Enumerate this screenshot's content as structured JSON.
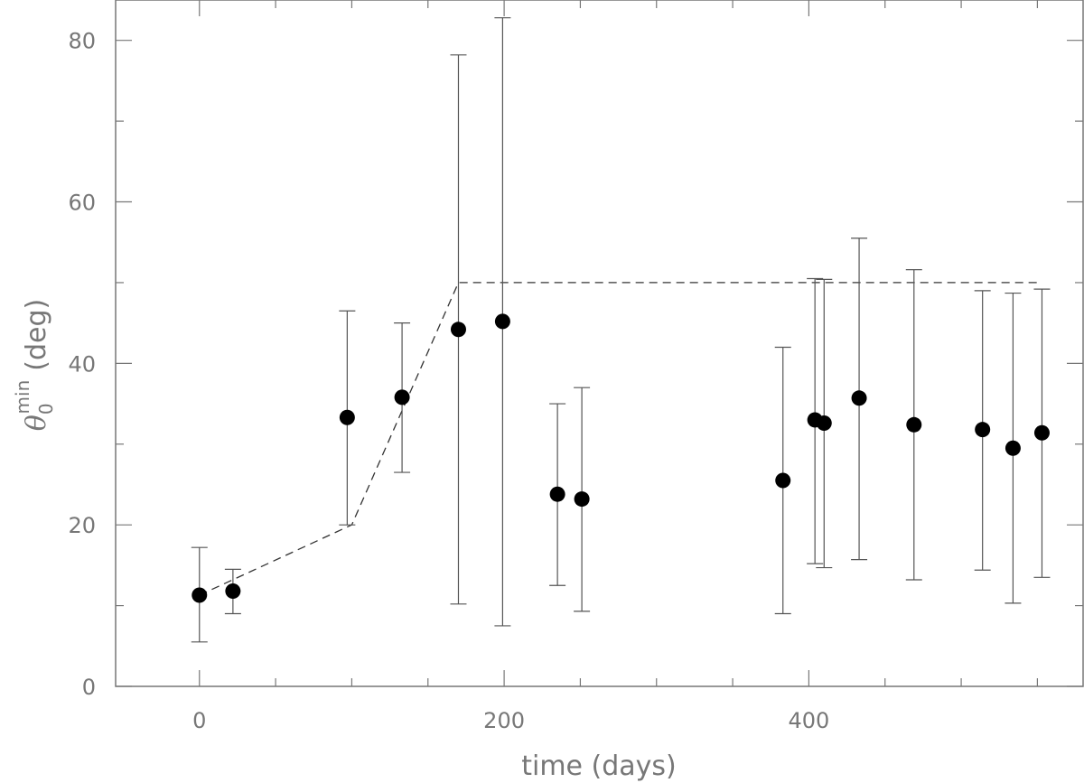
{
  "chart_data": {
    "type": "scatter",
    "title": "",
    "xlabel": "time (days)",
    "ylabel": {
      "symbol": "θ",
      "subscript": "0",
      "superscript": "min",
      "unit": "(deg)"
    },
    "xlim": [
      -55,
      580
    ],
    "ylim": [
      0,
      85
    ],
    "x_major_ticks": [
      0,
      200,
      400
    ],
    "x_minor_ticks": [
      50,
      100,
      150,
      250,
      300,
      350,
      450,
      500,
      550
    ],
    "y_major_ticks": [
      0,
      20,
      40,
      60,
      80
    ],
    "y_minor_ticks": [
      10,
      30,
      50,
      70
    ],
    "grid": false,
    "points": [
      {
        "x": 0,
        "y": 11.3,
        "ylow": 5.5,
        "yhigh": 17.2
      },
      {
        "x": 22,
        "y": 11.8,
        "ylow": 9.0,
        "yhigh": 14.5
      },
      {
        "x": 97,
        "y": 33.3,
        "ylow": 20.0,
        "yhigh": 46.5
      },
      {
        "x": 133,
        "y": 35.8,
        "ylow": 26.5,
        "yhigh": 45.0
      },
      {
        "x": 170,
        "y": 44.2,
        "ylow": 10.2,
        "yhigh": 78.2
      },
      {
        "x": 199,
        "y": 45.2,
        "ylow": 7.5,
        "yhigh": 82.8
      },
      {
        "x": 235,
        "y": 23.8,
        "ylow": 12.5,
        "yhigh": 35.0
      },
      {
        "x": 251,
        "y": 23.2,
        "ylow": 9.3,
        "yhigh": 37.0
      },
      {
        "x": 383,
        "y": 25.5,
        "ylow": 9.0,
        "yhigh": 42.0
      },
      {
        "x": 404,
        "y": 33.0,
        "ylow": 15.2,
        "yhigh": 50.5
      },
      {
        "x": 410,
        "y": 32.6,
        "ylow": 14.7,
        "yhigh": 50.4
      },
      {
        "x": 433,
        "y": 35.7,
        "ylow": 15.7,
        "yhigh": 55.5
      },
      {
        "x": 469,
        "y": 32.4,
        "ylow": 13.2,
        "yhigh": 51.6
      },
      {
        "x": 514,
        "y": 31.8,
        "ylow": 14.4,
        "yhigh": 49.0
      },
      {
        "x": 534,
        "y": 29.5,
        "ylow": 10.3,
        "yhigh": 48.7
      },
      {
        "x": 553,
        "y": 31.4,
        "ylow": 13.5,
        "yhigh": 49.2
      }
    ],
    "model_line": {
      "style": "dashed",
      "x": [
        0,
        100,
        170,
        553
      ],
      "y": [
        11.3,
        20.0,
        50.0,
        50.0
      ]
    },
    "colors": {
      "axis": "#777777",
      "points": "#000000",
      "errorbars": "#555555",
      "model_line": "#333333"
    }
  }
}
